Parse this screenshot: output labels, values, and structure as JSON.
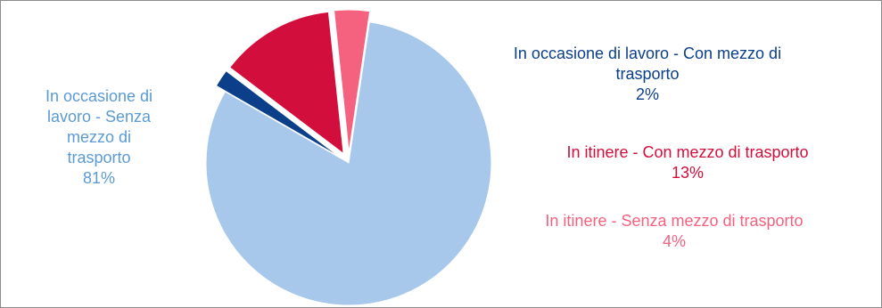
{
  "chart_data": {
    "type": "pie",
    "title": "",
    "slices": [
      {
        "label_lines": [
          "In occasione di lavoro - Con mezzo di",
          "trasporto"
        ],
        "value": 2,
        "pct": "2%",
        "color": "#0b3f8a"
      },
      {
        "label_lines": [
          "In itinere - Con mezzo di trasporto"
        ],
        "value": 13,
        "pct": "13%",
        "color": "#d20f3c"
      },
      {
        "label_lines": [
          "In itinere - Senza mezzo di trasporto"
        ],
        "value": 4,
        "pct": "4%",
        "color": "#f4627f"
      },
      {
        "label_lines": [
          "In occasione di",
          "lavoro - Senza",
          "mezzo di",
          "trasporto"
        ],
        "value": 81,
        "pct": "81%",
        "color": "#a7c8ea"
      }
    ]
  }
}
